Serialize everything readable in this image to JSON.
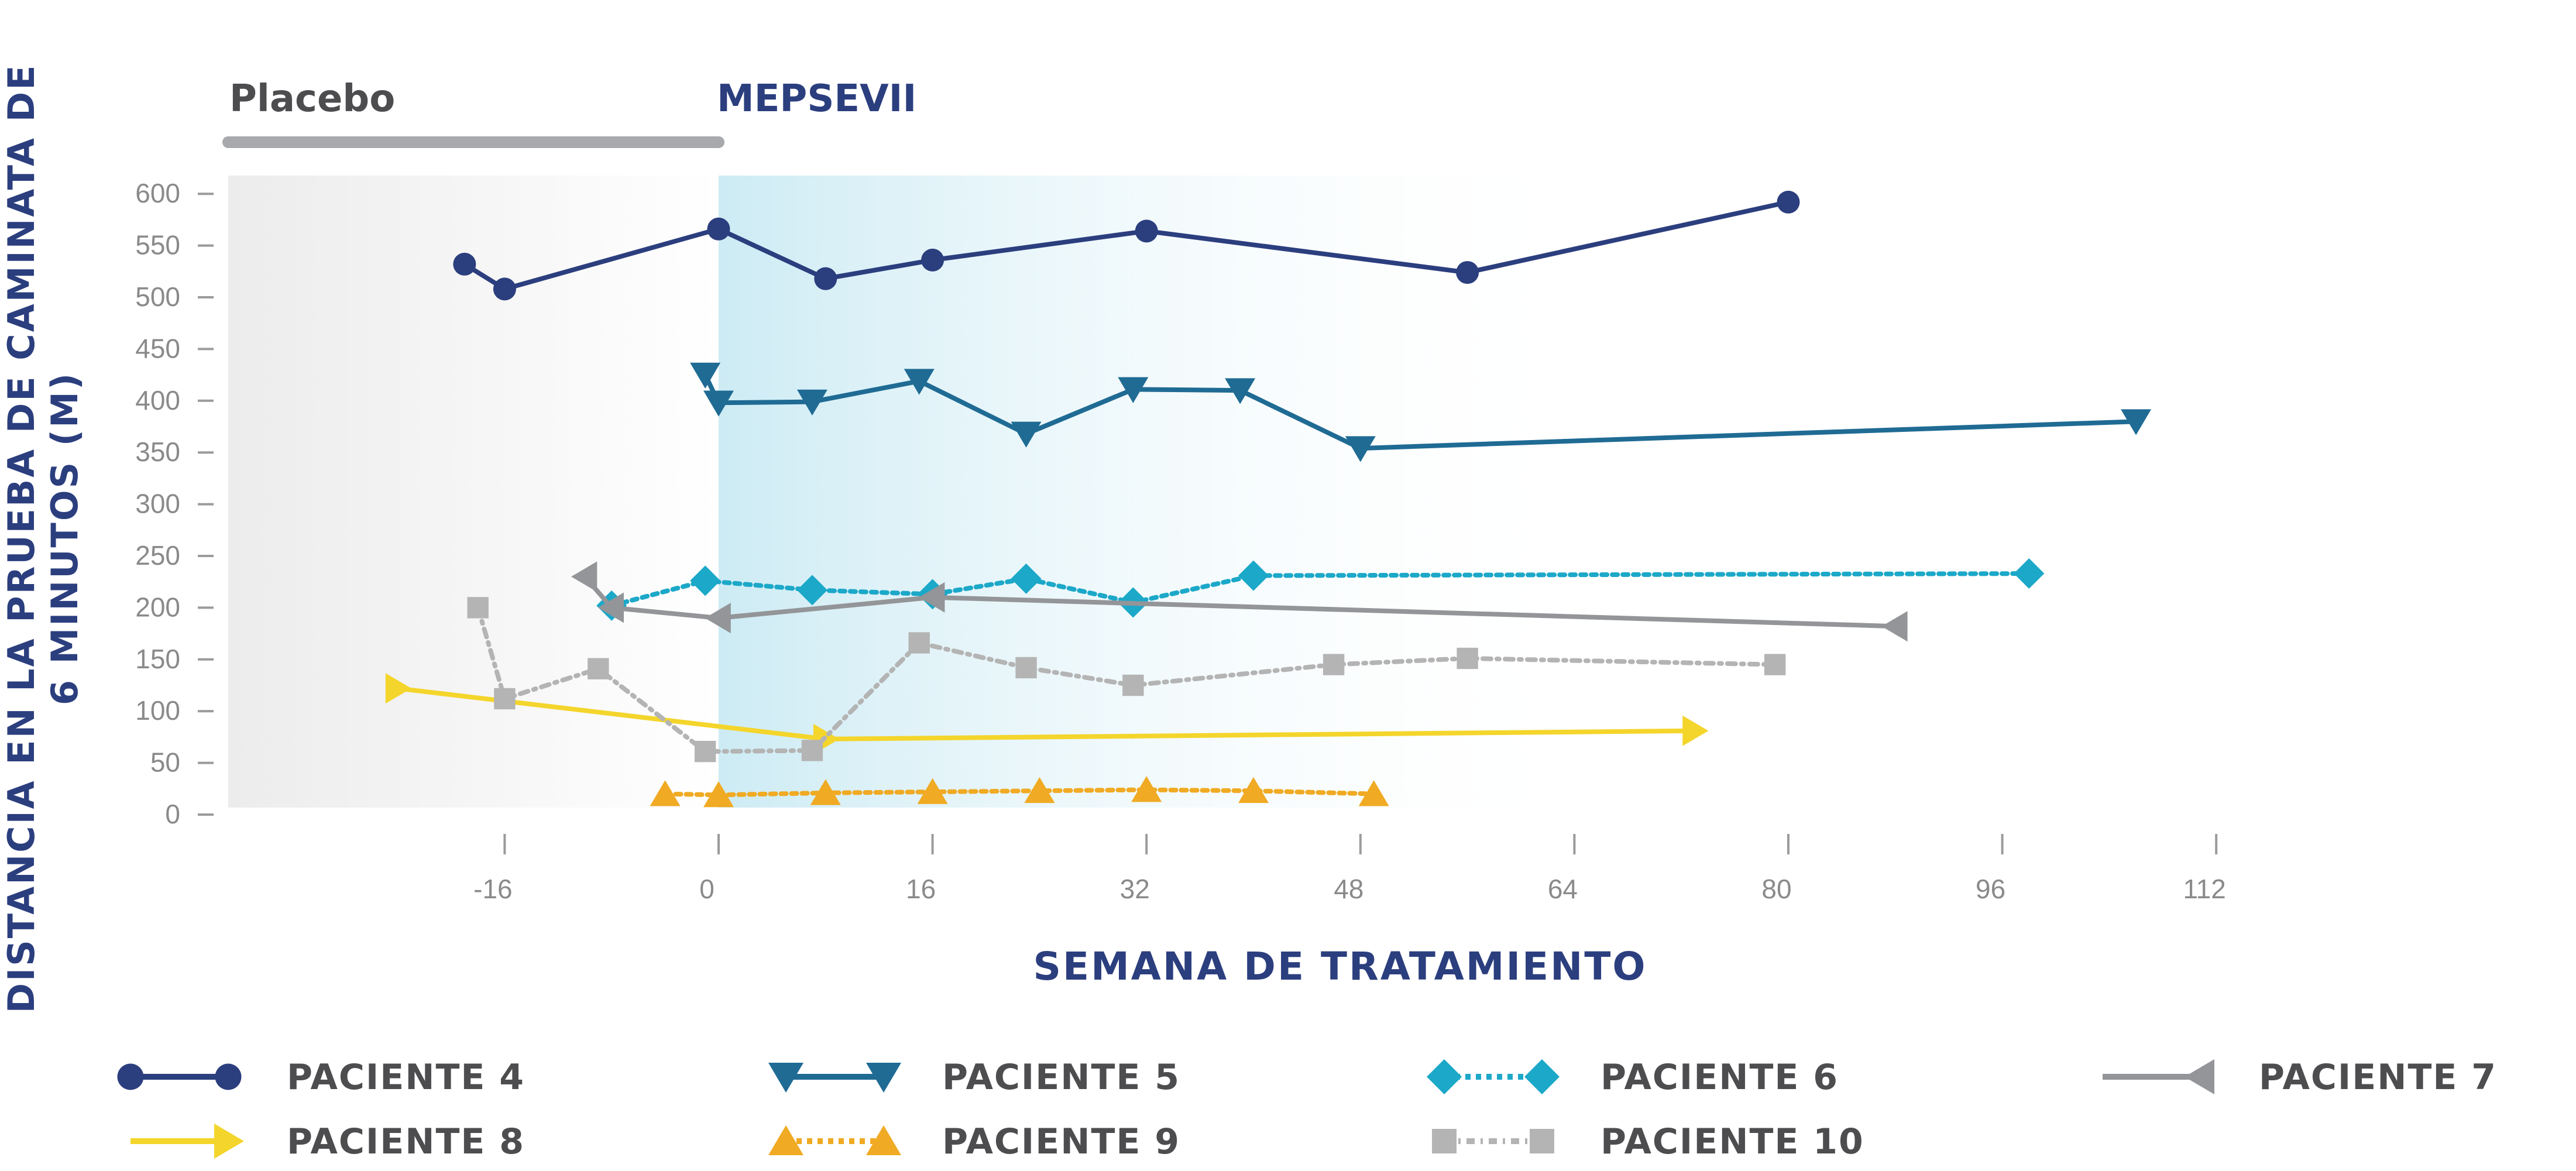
{
  "chart_data": {
    "type": "line",
    "xlabel": "SEMANA DE TRATAMIENTO",
    "ylabel": "DISTANCIA EN LA PRUEBA DE CAMINATA DE 6 MINUTOS (M)",
    "xlim": [
      -36,
      134
    ],
    "ylim": [
      0,
      600
    ],
    "x_ticks": [
      -16,
      0,
      16,
      32,
      48,
      64,
      80,
      96,
      112
    ],
    "y_ticks": [
      0,
      50,
      100,
      150,
      200,
      250,
      300,
      350,
      400,
      450,
      500,
      550,
      600
    ],
    "grid": false,
    "legend_position": "bottom",
    "phases": [
      {
        "label": "Placebo",
        "x_start": -36,
        "x_end": 0,
        "color": "#A7A9AC"
      },
      {
        "label": "MEPSEVII",
        "x_start": 0,
        "x_end": 134,
        "color_start": "#2B3E7E",
        "color_end": "#41B6D5"
      }
    ],
    "series": [
      {
        "name": "PACIENTE 4",
        "color": "#2B3E7E",
        "marker": "circle",
        "dash": "solid",
        "x": [
          -19,
          -16,
          0,
          8,
          16,
          32,
          56,
          80
        ],
        "y": [
          532,
          508,
          566,
          518,
          536,
          564,
          524,
          592
        ]
      },
      {
        "name": "PACIENTE 5",
        "color": "#1F6B94",
        "marker": "triangle-down",
        "dash": "solid",
        "x": [
          -1,
          0,
          7,
          15,
          23,
          31,
          39,
          48,
          106
        ],
        "y": [
          425,
          398,
          399,
          419,
          368,
          411,
          410,
          354,
          380
        ]
      },
      {
        "name": "PACIENTE 6",
        "color": "#1CA8C8",
        "marker": "diamond",
        "dash": "dotted",
        "x": [
          -8,
          -1,
          7,
          16,
          23,
          31,
          40,
          98
        ],
        "y": [
          202,
          226,
          217,
          213,
          228,
          205,
          231,
          233
        ]
      },
      {
        "name": "PACIENTE 7",
        "color": "#939598",
        "marker": "triangle-left",
        "dash": "solid",
        "x": [
          -10,
          -8,
          0,
          16,
          88
        ],
        "y": [
          230,
          200,
          190,
          210,
          182
        ]
      },
      {
        "name": "PACIENTE 8",
        "color": "#F4D52B",
        "marker": "triangle-right",
        "dash": "solid",
        "x": [
          -24,
          8,
          73
        ],
        "y": [
          122,
          73,
          81
        ]
      },
      {
        "name": "PACIENTE 9",
        "color": "#F0AA23",
        "marker": "triangle-up",
        "dash": "dotted",
        "x": [
          -4,
          0,
          8,
          16,
          24,
          32,
          40,
          49
        ],
        "y": [
          20,
          19,
          21,
          22,
          23,
          24,
          23,
          20
        ]
      },
      {
        "name": "PACIENTE 10",
        "color": "#B4B4B4",
        "marker": "square",
        "dash": "mixed",
        "x": [
          -18,
          -16,
          -9,
          -1,
          7,
          15,
          23,
          31,
          46,
          56,
          79
        ],
        "y": [
          200,
          112,
          141,
          61,
          62,
          166,
          142,
          125,
          145,
          151,
          145
        ]
      }
    ]
  }
}
